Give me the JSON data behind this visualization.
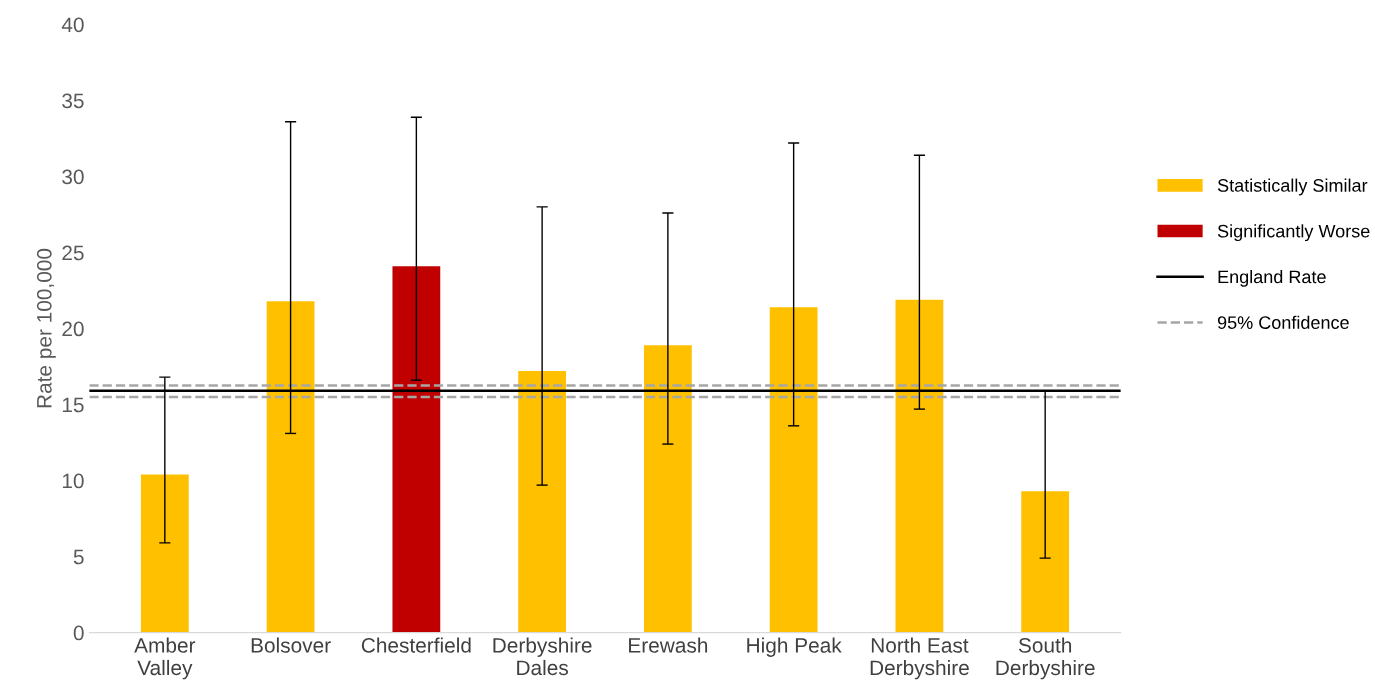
{
  "chart_data": {
    "type": "bar",
    "ylabel": "Rate per 100,000",
    "categories": [
      "Amber\nValley",
      "Bolsover",
      "Chesterfield",
      "Derbyshire\nDales",
      "Erewash",
      "High Peak",
      "North East\nDerbyshire",
      "South\nDerbyshire"
    ],
    "series": [
      {
        "name": "Statistically Similar",
        "color": "#ffc000",
        "values": [
          10.4,
          21.8,
          null,
          17.2,
          18.9,
          21.4,
          21.9,
          9.3
        ],
        "errors": [
          [
            5.9,
            16.8
          ],
          [
            13.1,
            33.6
          ],
          null,
          [
            9.7,
            28.0
          ],
          [
            12.4,
            27.6
          ],
          [
            13.6,
            32.2
          ],
          [
            14.7,
            31.4
          ],
          [
            4.9,
            15.9
          ]
        ]
      },
      {
        "name": "Significantly Worse",
        "color": "#c00000",
        "values": [
          null,
          null,
          24.1,
          null,
          null,
          null,
          null,
          null
        ],
        "errors": [
          null,
          null,
          [
            16.6,
            33.9
          ],
          null,
          null,
          null,
          null,
          null
        ]
      }
    ],
    "ylim": [
      0,
      40
    ],
    "yticks": [
      0,
      5,
      10,
      15,
      20,
      25,
      30,
      35,
      40
    ],
    "ref_lines": [
      {
        "axis": "y",
        "value": 15.9,
        "label": "England Rate",
        "color": "#000000",
        "line_style": "solid"
      },
      {
        "axis": "y",
        "value": 16.25,
        "label": "95% Confidence",
        "color": "#a6a6a6",
        "line_style": "dashed"
      },
      {
        "axis": "y",
        "value": 15.5,
        "label": null,
        "color": "#a6a6a6",
        "line_style": "dashed"
      }
    ],
    "grid": false,
    "legend": "right"
  }
}
